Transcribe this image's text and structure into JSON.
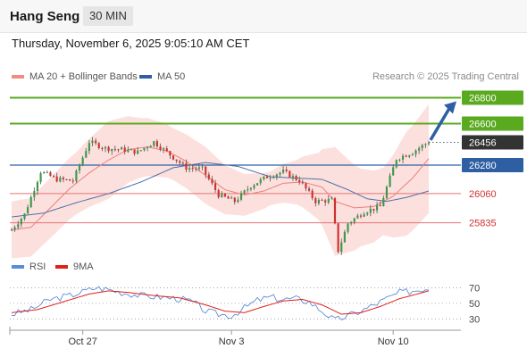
{
  "header": {
    "instrument": "Hang Seng",
    "timeframe": "30 MIN"
  },
  "timestamp": "Thursday, November 6, 2025 9:05:10 AM CET",
  "credit": "Research © 2025 Trading Central",
  "chart_data": [
    {
      "type": "candlestick",
      "legend": [
        {
          "label": "MA 20 + Bollinger Bands",
          "color": "#f28b82"
        },
        {
          "label": "MA 50",
          "color": "#2e5fa3"
        }
      ],
      "x_ticks": [
        "Oct 27",
        "Nov 3",
        "Nov 10"
      ],
      "ylim": [
        25660,
        26900
      ],
      "levels": [
        {
          "label": "26800",
          "value": 26800,
          "kind": "resistance"
        },
        {
          "label": "26600",
          "value": 26600,
          "kind": "resistance"
        },
        {
          "label": "26456",
          "value": 26456,
          "kind": "last"
        },
        {
          "label": "26280",
          "value": 26280,
          "kind": "pivot"
        },
        {
          "label": "26060",
          "value": 26060,
          "kind": "support"
        },
        {
          "label": "25835",
          "value": 25835,
          "kind": "support"
        }
      ],
      "anchors": [
        [
          0,
          25780
        ],
        [
          4,
          25900
        ],
        [
          9,
          26230
        ],
        [
          14,
          26170
        ],
        [
          19,
          26160
        ],
        [
          24,
          26460
        ],
        [
          29,
          26410
        ],
        [
          34,
          26400
        ],
        [
          39,
          26380
        ],
        [
          44,
          26460
        ],
        [
          49,
          26360
        ],
        [
          54,
          26260
        ],
        [
          59,
          26250
        ],
        [
          64,
          26050
        ],
        [
          69,
          26000
        ],
        [
          74,
          26120
        ],
        [
          79,
          26190
        ],
        [
          84,
          26230
        ],
        [
          89,
          26160
        ],
        [
          94,
          26000
        ],
        [
          99,
          26010
        ],
        [
          101,
          25620
        ],
        [
          104,
          25830
        ],
        [
          109,
          25920
        ],
        [
          114,
          25960
        ],
        [
          119,
          26330
        ],
        [
          124,
          26380
        ],
        [
          129,
          26460
        ]
      ],
      "mid_points": [
        [
          0,
          25780
        ],
        [
          6,
          25800
        ],
        [
          12,
          25950
        ],
        [
          18,
          26100
        ],
        [
          24,
          26220
        ],
        [
          30,
          26320
        ],
        [
          36,
          26400
        ],
        [
          42,
          26420
        ],
        [
          48,
          26390
        ],
        [
          54,
          26310
        ],
        [
          60,
          26200
        ],
        [
          66,
          26090
        ],
        [
          72,
          26050
        ],
        [
          78,
          26080
        ],
        [
          84,
          26140
        ],
        [
          90,
          26150
        ],
        [
          96,
          26110
        ],
        [
          100,
          26000
        ],
        [
          106,
          25950
        ],
        [
          112,
          25960
        ],
        [
          118,
          26040
        ],
        [
          124,
          26180
        ],
        [
          129,
          26330
        ]
      ],
      "band_width": [
        [
          0,
          220
        ],
        [
          20,
          240
        ],
        [
          30,
          300
        ],
        [
          40,
          230
        ],
        [
          50,
          200
        ],
        [
          60,
          220
        ],
        [
          70,
          170
        ],
        [
          80,
          130
        ],
        [
          88,
          170
        ],
        [
          95,
          260
        ],
        [
          100,
          420
        ],
        [
          108,
          300
        ],
        [
          115,
          260
        ],
        [
          122,
          400
        ],
        [
          129,
          420
        ]
      ],
      "ma50_points": [
        [
          0,
          25880
        ],
        [
          10,
          25910
        ],
        [
          20,
          25990
        ],
        [
          30,
          26060
        ],
        [
          40,
          26150
        ],
        [
          50,
          26260
        ],
        [
          60,
          26300
        ],
        [
          70,
          26270
        ],
        [
          80,
          26190
        ],
        [
          88,
          26180
        ],
        [
          96,
          26170
        ],
        [
          104,
          26090
        ],
        [
          110,
          26020
        ],
        [
          116,
          26000
        ],
        [
          122,
          26030
        ],
        [
          129,
          26080
        ]
      ],
      "candle_count": 130
    },
    {
      "type": "line",
      "name": "RSI panel",
      "legend": [
        {
          "label": "RSI",
          "color": "#5b8bd8"
        },
        {
          "label": "9MA",
          "color": "#e0201b"
        }
      ],
      "y_ticks": [
        70,
        50,
        30
      ],
      "ylim": [
        20,
        82
      ],
      "rsi_points": [
        [
          0,
          36
        ],
        [
          6,
          42
        ],
        [
          12,
          55
        ],
        [
          18,
          60
        ],
        [
          22,
          65
        ],
        [
          26,
          70
        ],
        [
          30,
          68
        ],
        [
          34,
          64
        ],
        [
          40,
          60
        ],
        [
          46,
          58
        ],
        [
          52,
          56
        ],
        [
          56,
          52
        ],
        [
          60,
          40
        ],
        [
          64,
          36
        ],
        [
          68,
          34
        ],
        [
          72,
          44
        ],
        [
          76,
          54
        ],
        [
          80,
          58
        ],
        [
          84,
          55
        ],
        [
          88,
          56
        ],
        [
          92,
          52
        ],
        [
          96,
          40
        ],
        [
          100,
          28
        ],
        [
          104,
          34
        ],
        [
          108,
          40
        ],
        [
          112,
          48
        ],
        [
          116,
          56
        ],
        [
          120,
          64
        ],
        [
          124,
          66
        ],
        [
          129,
          70
        ]
      ],
      "ma9_points": [
        [
          0,
          38
        ],
        [
          8,
          42
        ],
        [
          16,
          52
        ],
        [
          24,
          62
        ],
        [
          30,
          66
        ],
        [
          36,
          64
        ],
        [
          44,
          60
        ],
        [
          52,
          57
        ],
        [
          60,
          48
        ],
        [
          66,
          40
        ],
        [
          72,
          38
        ],
        [
          78,
          46
        ],
        [
          84,
          53
        ],
        [
          90,
          55
        ],
        [
          96,
          48
        ],
        [
          102,
          36
        ],
        [
          108,
          38
        ],
        [
          114,
          46
        ],
        [
          120,
          56
        ],
        [
          129,
          66
        ]
      ]
    }
  ]
}
